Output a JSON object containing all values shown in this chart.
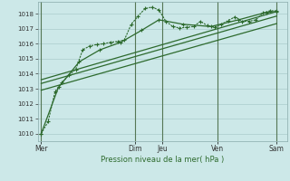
{
  "bg_color": "#cce8e8",
  "grid_color": "#aacccc",
  "line_color": "#2d6a2d",
  "title": "Pression niveau de la mer( hPa )",
  "ylim": [
    1009.5,
    1018.8
  ],
  "yticks": [
    1010,
    1011,
    1012,
    1013,
    1014,
    1015,
    1016,
    1017,
    1018
  ],
  "xlim": [
    0,
    36
  ],
  "day_labels": [
    "Mer",
    "Dim",
    "Jeu",
    "Ven",
    "Sam"
  ],
  "day_positions": [
    0.5,
    14,
    18,
    26,
    34.5
  ],
  "vline_positions": [
    0.5,
    14,
    18,
    26,
    34.5
  ],
  "series_dotted": {
    "x": [
      0.5,
      1.5,
      2.5,
      3.5,
      4.5,
      5.5,
      6.5,
      7.5,
      8.5,
      9.5,
      10.5,
      11.5,
      12.5,
      13.5,
      14.5,
      15.5,
      16.5,
      17.5,
      18.5,
      19.5,
      20.5,
      21.5,
      22.5,
      23.5,
      24.5,
      25.5,
      26.5,
      27.5,
      28.5,
      29.5,
      30.5,
      31.5,
      32.5,
      33.5,
      34.5
    ],
    "y": [
      1010.0,
      1010.8,
      1012.8,
      1013.4,
      1013.9,
      1014.3,
      1015.6,
      1015.85,
      1015.95,
      1016.0,
      1016.1,
      1016.15,
      1016.25,
      1017.3,
      1017.85,
      1018.35,
      1018.45,
      1018.25,
      1017.5,
      1017.15,
      1017.05,
      1017.1,
      1017.15,
      1017.5,
      1017.2,
      1017.1,
      1017.3,
      1017.55,
      1017.8,
      1017.5,
      1017.5,
      1017.6,
      1018.05,
      1018.2,
      1018.2
    ]
  },
  "series_smooth": {
    "x": [
      0.5,
      3,
      6,
      9,
      12,
      15,
      17.5,
      21,
      25,
      29,
      33,
      34.5
    ],
    "y": [
      1010.0,
      1013.1,
      1014.8,
      1015.6,
      1016.1,
      1016.9,
      1017.6,
      1017.3,
      1017.15,
      1017.6,
      1018.1,
      1018.15
    ]
  },
  "trend1": {
    "x": [
      0.5,
      34.5
    ],
    "y": [
      1012.9,
      1017.35
    ]
  },
  "trend2": {
    "x": [
      0.5,
      34.5
    ],
    "y": [
      1013.35,
      1017.85
    ]
  },
  "trend3": {
    "x": [
      0.5,
      34.5
    ],
    "y": [
      1013.6,
      1018.15
    ]
  }
}
